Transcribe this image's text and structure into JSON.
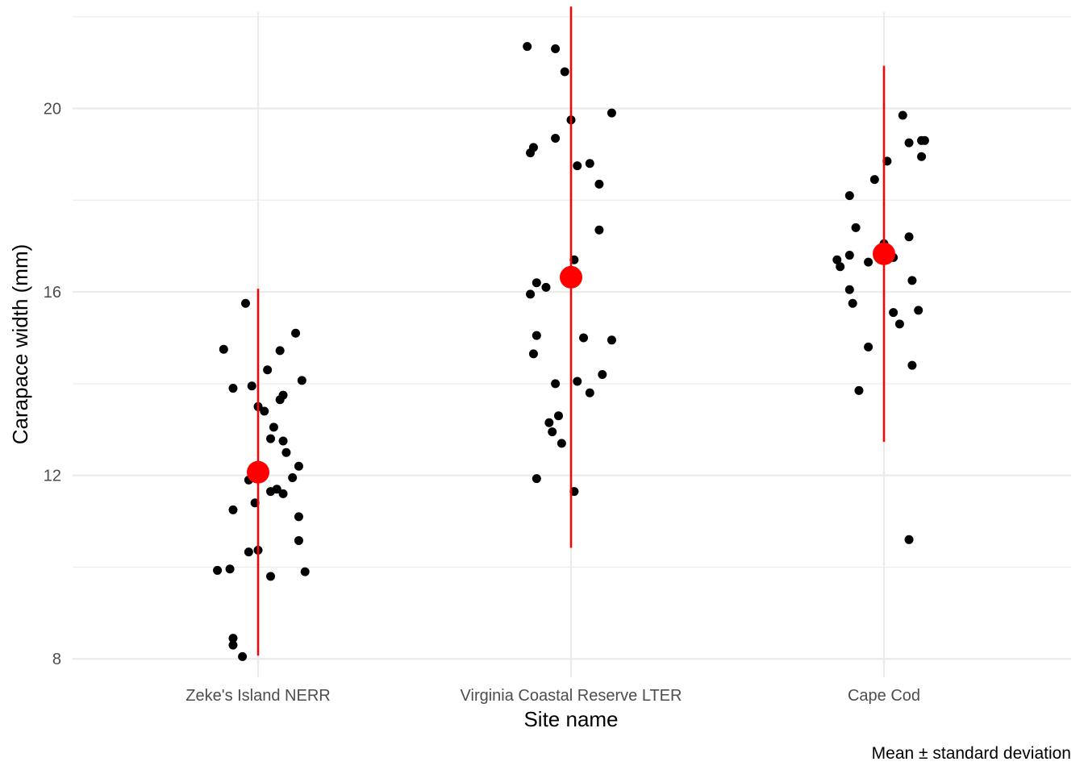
{
  "chart_data": {
    "type": "scatter",
    "title": "",
    "xlabel": "Site name",
    "ylabel": "Carapace width (mm)",
    "caption": "Mean ± standard deviation",
    "categories": [
      "Zeke's Island NERR",
      "Virginia Coastal Reserve LTER",
      "Cape Cod"
    ],
    "ylim": [
      7.6,
      22.1
    ],
    "yticks": [
      "8",
      "12",
      "16",
      "20"
    ],
    "grid": true,
    "colors": {
      "points": "#000000",
      "summary": "#ff0000",
      "grid": "#ebebeb"
    },
    "series": [
      {
        "category": "Zeke's Island NERR",
        "points": [
          [
            -0.04,
            15.75
          ],
          [
            -0.11,
            14.75
          ],
          [
            0.07,
            14.72
          ],
          [
            0.12,
            15.1
          ],
          [
            -0.08,
            13.9
          ],
          [
            -0.02,
            13.95
          ],
          [
            0.03,
            14.3
          ],
          [
            0.14,
            14.07
          ],
          [
            0.0,
            13.5
          ],
          [
            0.02,
            13.4
          ],
          [
            0.07,
            13.65
          ],
          [
            0.08,
            13.75
          ],
          [
            0.05,
            13.05
          ],
          [
            0.04,
            12.8
          ],
          [
            0.08,
            12.75
          ],
          [
            0.09,
            12.5
          ],
          [
            -0.03,
            11.9
          ],
          [
            0.13,
            12.2
          ],
          [
            0.11,
            11.95
          ],
          [
            0.04,
            11.65
          ],
          [
            0.06,
            11.7
          ],
          [
            0.08,
            11.6
          ],
          [
            -0.01,
            11.4
          ],
          [
            -0.08,
            11.25
          ],
          [
            0.13,
            11.1
          ],
          [
            0.13,
            10.58
          ],
          [
            -0.03,
            10.33
          ],
          [
            0.0,
            10.37
          ],
          [
            -0.13,
            9.93
          ],
          [
            -0.09,
            9.96
          ],
          [
            0.04,
            9.8
          ],
          [
            0.15,
            9.9
          ],
          [
            -0.08,
            8.45
          ],
          [
            -0.08,
            8.3
          ],
          [
            -0.05,
            8.05
          ]
        ],
        "mean": 12.07,
        "sd": 4.0
      },
      {
        "category": "Virginia Coastal Reserve LTER",
        "points": [
          [
            -0.14,
            21.35
          ],
          [
            -0.05,
            21.3
          ],
          [
            -0.02,
            20.8
          ],
          [
            0.0,
            19.75
          ],
          [
            0.13,
            19.9
          ],
          [
            -0.05,
            19.35
          ],
          [
            -0.12,
            19.15
          ],
          [
            -0.13,
            19.03
          ],
          [
            0.02,
            18.75
          ],
          [
            0.06,
            18.8
          ],
          [
            0.09,
            18.35
          ],
          [
            0.09,
            17.35
          ],
          [
            0.01,
            16.7
          ],
          [
            -0.11,
            16.2
          ],
          [
            -0.08,
            16.1
          ],
          [
            -0.13,
            15.95
          ],
          [
            -0.11,
            15.05
          ],
          [
            0.04,
            15.0
          ],
          [
            0.13,
            14.95
          ],
          [
            -0.12,
            14.65
          ],
          [
            0.1,
            14.2
          ],
          [
            0.02,
            14.05
          ],
          [
            -0.05,
            14.0
          ],
          [
            0.06,
            13.8
          ],
          [
            -0.04,
            13.3
          ],
          [
            -0.07,
            13.15
          ],
          [
            -0.06,
            12.95
          ],
          [
            -0.03,
            12.7
          ],
          [
            -0.11,
            11.93
          ],
          [
            0.01,
            11.65
          ]
        ],
        "mean": 16.32,
        "sd": 5.9
      },
      {
        "category": "Cape Cod",
        "points": [
          [
            0.06,
            19.85
          ],
          [
            0.13,
            19.3
          ],
          [
            0.08,
            19.25
          ],
          [
            0.12,
            19.3
          ],
          [
            0.12,
            18.95
          ],
          [
            0.01,
            18.85
          ],
          [
            -0.03,
            18.45
          ],
          [
            -0.11,
            18.1
          ],
          [
            -0.09,
            17.4
          ],
          [
            0.08,
            17.2
          ],
          [
            0.0,
            17.05
          ],
          [
            -0.11,
            16.8
          ],
          [
            -0.15,
            16.7
          ],
          [
            -0.14,
            16.55
          ],
          [
            -0.05,
            16.65
          ],
          [
            0.03,
            16.75
          ],
          [
            0.09,
            16.25
          ],
          [
            -0.11,
            16.05
          ],
          [
            -0.1,
            15.75
          ],
          [
            0.03,
            15.55
          ],
          [
            0.11,
            15.6
          ],
          [
            0.05,
            15.3
          ],
          [
            -0.05,
            14.8
          ],
          [
            0.09,
            14.4
          ],
          [
            -0.08,
            13.85
          ],
          [
            0.08,
            10.6
          ]
        ],
        "mean": 16.83,
        "sd": 4.1
      }
    ]
  }
}
